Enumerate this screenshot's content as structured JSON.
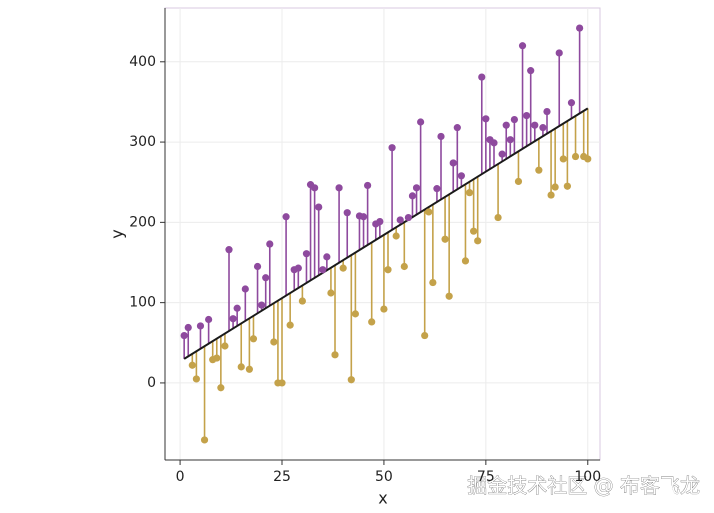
{
  "chart_data": {
    "type": "lollipop_residual",
    "x_label": "x",
    "y_label": "y",
    "watermark": "掘金技术社区 @ 布客飞龙",
    "xlim": [
      -3.7,
      103
    ],
    "ylim": [
      -96,
      467
    ],
    "xticks": [
      0,
      25,
      50,
      75,
      100
    ],
    "yticks": [
      0,
      100,
      200,
      300,
      400
    ],
    "grid": true,
    "above_color": "#8e4a9e",
    "below_color": "#c4a24a",
    "line_color": "#1a1a1a",
    "fit": {
      "x": [
        1,
        100
      ],
      "values": [
        30,
        342
      ]
    },
    "x": [
      1,
      2,
      3,
      4,
      5,
      6,
      7,
      8,
      9,
      10,
      11,
      12,
      13,
      14,
      15,
      16,
      17,
      18,
      19,
      20,
      21,
      22,
      23,
      24,
      25,
      26,
      27,
      28,
      29,
      30,
      31,
      32,
      33,
      34,
      35,
      36,
      37,
      38,
      39,
      40,
      41,
      42,
      43,
      44,
      45,
      46,
      47,
      48,
      49,
      50,
      51,
      52,
      53,
      54,
      55,
      56,
      57,
      58,
      59,
      60,
      61,
      62,
      63,
      64,
      65,
      66,
      67,
      68,
      69,
      70,
      71,
      72,
      73,
      74,
      75,
      76,
      77,
      78,
      79,
      80,
      81,
      82,
      83,
      84,
      85,
      86,
      87,
      88,
      89,
      90,
      91,
      92,
      93,
      94,
      95,
      96,
      97,
      98,
      99,
      100
    ],
    "values": [
      59,
      69,
      22,
      5,
      71,
      -71,
      79,
      29,
      31,
      -6,
      46,
      166,
      80,
      93,
      20,
      117,
      17,
      55,
      145,
      97,
      131,
      173,
      51,
      0,
      0,
      207,
      72,
      141,
      143,
      102,
      161,
      247,
      243,
      219,
      141,
      157,
      112,
      35,
      243,
      143,
      212,
      4,
      86,
      208,
      207,
      246,
      76,
      198,
      201,
      92,
      141,
      293,
      183,
      203,
      145,
      206,
      233,
      243,
      325,
      59,
      213,
      125,
      242,
      307,
      179,
      108,
      274,
      318,
      258,
      152,
      237,
      189,
      177,
      381,
      329,
      303,
      299,
      206,
      285,
      321,
      303,
      328,
      251,
      420,
      333,
      389,
      321,
      265,
      318,
      338,
      234,
      244,
      411,
      279,
      245,
      349,
      282,
      442,
      282,
      279
    ]
  }
}
